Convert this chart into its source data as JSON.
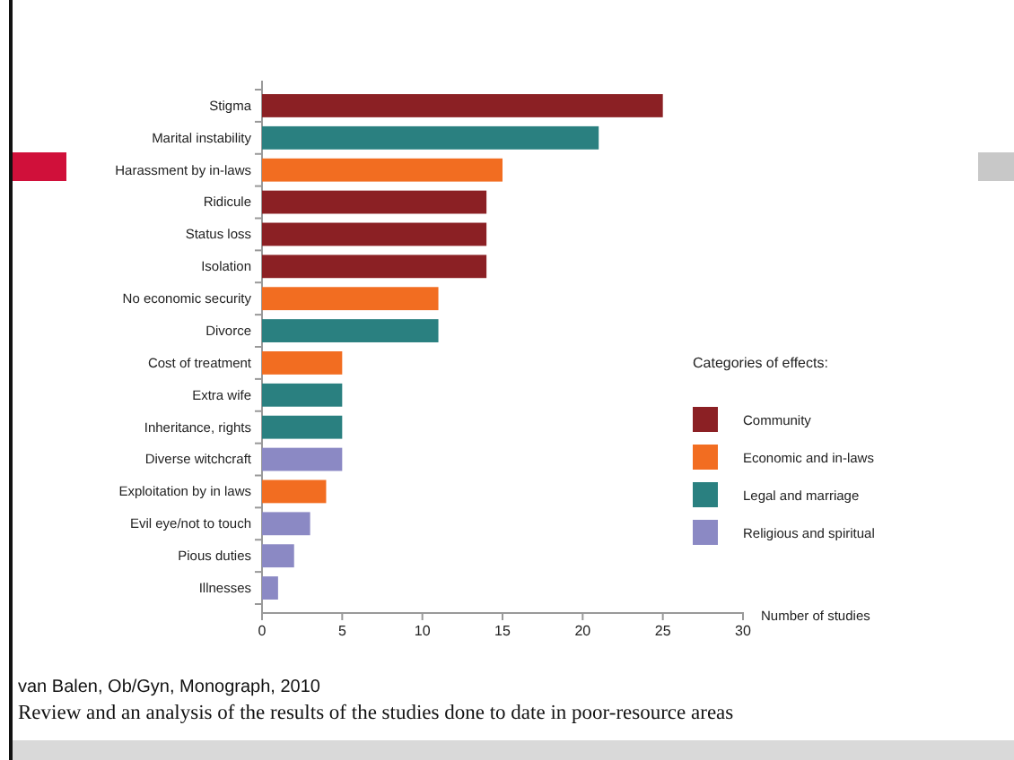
{
  "chart_data": {
    "type": "bar",
    "orientation": "horizontal",
    "categories": [
      "Stigma",
      "Marital instability",
      "Harassment by in-laws",
      "Ridicule",
      "Status loss",
      "Isolation",
      "No economic security",
      "Divorce",
      "Cost of treatment",
      "Extra wife",
      "Inheritance, rights",
      "Diverse witchcraft",
      "Exploitation by in laws",
      "Evil eye/not to touch",
      "Pious duties",
      "Illnesses"
    ],
    "series": [
      {
        "name": "Community",
        "color": "#8b2024",
        "values": [
          25,
          null,
          null,
          14,
          14,
          14,
          null,
          null,
          null,
          null,
          null,
          null,
          null,
          null,
          null,
          null
        ]
      },
      {
        "name": "Economic and in-laws",
        "color": "#f26d21",
        "values": [
          null,
          null,
          15,
          null,
          null,
          null,
          11,
          null,
          5,
          null,
          null,
          null,
          4,
          null,
          null,
          null
        ]
      },
      {
        "name": "Legal and marriage",
        "color": "#2a8080",
        "values": [
          null,
          21,
          null,
          null,
          null,
          null,
          null,
          11,
          null,
          5,
          5,
          null,
          null,
          null,
          null,
          null
        ]
      },
      {
        "name": "Religious and spiritual",
        "color": "#8b89c4",
        "values": [
          null,
          null,
          null,
          null,
          null,
          null,
          null,
          null,
          null,
          null,
          null,
          5,
          null,
          3,
          2,
          1
        ]
      }
    ],
    "xlim": [
      0,
      30
    ],
    "xticks": [
      0,
      5,
      10,
      15,
      20,
      25,
      30
    ],
    "xlabel": "Number of studies",
    "legend_title": "Categories of effects:",
    "legend": "right",
    "grid": false,
    "annotations": [
      "van Balen, Ob/Gyn, Monograph, 2010",
      "Review and an analysis of the results of the studies done to date in poor-resource areas"
    ]
  }
}
